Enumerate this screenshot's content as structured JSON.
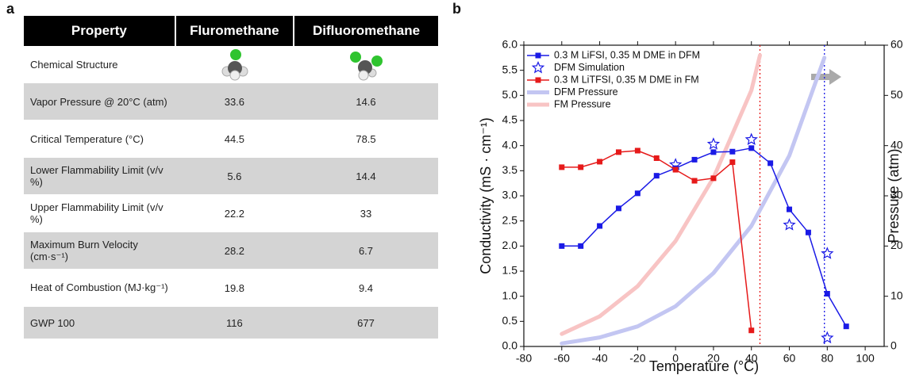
{
  "panels": [
    "a",
    "b"
  ],
  "table": {
    "header": [
      "Property",
      "Fluromethane",
      "Difluoromethane"
    ],
    "rows": [
      [
        "Chemical Structure"
      ],
      [
        "Vapor Pressure @ 20°C (atm)",
        "33.6",
        "14.6"
      ],
      [
        "Critical Temperature (°C)",
        "44.5",
        "78.5"
      ],
      [
        "Lower Flammability Limit (v/v %)",
        "5.6",
        "14.4"
      ],
      [
        "Upper Flammability Limit (v/v %)",
        "22.2",
        "33"
      ],
      [
        "Maximum Burn Velocity (cm·s⁻¹)",
        "28.2",
        "6.7"
      ],
      [
        "Heat of Combustion (MJ·kg⁻¹)",
        "19.8",
        "9.4"
      ],
      [
        "GWP 100",
        "116",
        "677"
      ]
    ]
  },
  "chart_data": {
    "type": "line",
    "x_label": "Temperature (°C)",
    "y_label": "Conductivity (mS · cm⁻¹)",
    "y2_label": "Pressure (atm)",
    "xlim": [
      -80,
      110
    ],
    "xticks": [
      -80,
      -60,
      -40,
      -20,
      0,
      20,
      40,
      60,
      80,
      100
    ],
    "ylim": [
      0,
      6
    ],
    "yticks": [
      {
        "value": 0,
        "label": "0.0"
      },
      0.5,
      {
        "value": 1,
        "label": "1.0"
      },
      1.5,
      {
        "value": 2,
        "label": "2.0"
      },
      2.5,
      {
        "value": 3,
        "label": "3.0"
      },
      3.5,
      {
        "value": 4,
        "label": "4.0"
      },
      4.5,
      {
        "value": 5,
        "label": "5.0"
      },
      5.5,
      {
        "value": 6,
        "label": "6.0"
      }
    ],
    "y2lim": [
      0,
      60
    ],
    "y2ticks": [
      0,
      10,
      20,
      30,
      40,
      50,
      60
    ],
    "legend": "upper left",
    "series": [
      {
        "name": "0.3 M LiFSI, 0.35 M DME in DFM",
        "color": "#1a1ae6",
        "marker": "square",
        "linewidth": 1.5,
        "x": [
          -60,
          -50,
          -40,
          -30,
          -20,
          -10,
          0,
          10,
          20,
          30,
          40,
          50,
          60,
          70,
          80,
          90
        ],
        "values": [
          2.0,
          2.0,
          2.4,
          2.75,
          3.05,
          3.4,
          3.55,
          3.72,
          3.87,
          3.88,
          3.95,
          3.65,
          2.73,
          2.27,
          1.05,
          0.4
        ]
      },
      {
        "name": "DFM Simulation",
        "color": "#1a1ae6",
        "marker": "star",
        "linewidth": 0,
        "x": [
          0,
          20,
          40,
          60,
          80,
          80
        ],
        "values": [
          3.62,
          4.03,
          4.12,
          2.42,
          1.85,
          0.17
        ]
      },
      {
        "name": "0.3 M LiTFSI, 0.35 M DME in FM",
        "color": "#e61a1a",
        "marker": "square",
        "linewidth": 1.5,
        "x": [
          -60,
          -50,
          -40,
          -30,
          -20,
          -10,
          0,
          10,
          20,
          30,
          40
        ],
        "values": [
          3.57,
          3.57,
          3.68,
          3.87,
          3.9,
          3.75,
          3.52,
          3.3,
          3.35,
          3.67,
          0.32
        ]
      },
      {
        "name": "DFM Pressure",
        "color": "#c3c6f2",
        "marker": "none",
        "linewidth": 5,
        "axis": "y2",
        "x": [
          -60,
          -40,
          -20,
          0,
          20,
          40,
          60,
          78.5
        ],
        "values": [
          0.6,
          1.8,
          4,
          8,
          14.6,
          24,
          38,
          57.5
        ]
      },
      {
        "name": "FM Pressure",
        "color": "#f8c4c4",
        "marker": "none",
        "linewidth": 5,
        "axis": "y2",
        "x": [
          -60,
          -40,
          -20,
          0,
          20,
          40,
          44.5
        ],
        "values": [
          2.5,
          6,
          12,
          21,
          33.6,
          51,
          58
        ]
      }
    ],
    "critical_lines": [
      {
        "x": 44.5,
        "color": "#e61a1a"
      },
      {
        "x": 78.5,
        "color": "#1a1ae6"
      }
    ]
  }
}
